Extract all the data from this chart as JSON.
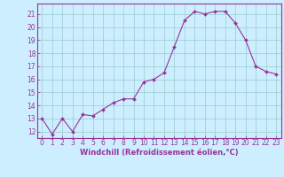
{
  "hours": [
    0,
    1,
    2,
    3,
    4,
    5,
    6,
    7,
    8,
    9,
    10,
    11,
    12,
    13,
    14,
    15,
    16,
    17,
    18,
    19,
    20,
    21,
    22,
    23
  ],
  "windchill": [
    13.0,
    11.8,
    13.0,
    12.0,
    13.3,
    13.2,
    13.7,
    14.2,
    14.5,
    14.5,
    15.8,
    16.0,
    16.5,
    18.5,
    20.5,
    21.2,
    21.0,
    21.2,
    21.2,
    20.3,
    19.0,
    17.0,
    16.6,
    16.4
  ],
  "line_color": "#993399",
  "marker_color": "#993399",
  "bg_color": "#cceeff",
  "grid_color": "#99cccc",
  "axis_color": "#993399",
  "xlabel": "Windchill (Refroidissement éolien,°C)",
  "ylim": [
    11.5,
    21.8
  ],
  "yticks": [
    12,
    13,
    14,
    15,
    16,
    17,
    18,
    19,
    20,
    21
  ],
  "xlim": [
    -0.5,
    23.5
  ],
  "tick_color": "#993399",
  "font_size": 5.5,
  "xlabel_font_size": 6.0
}
